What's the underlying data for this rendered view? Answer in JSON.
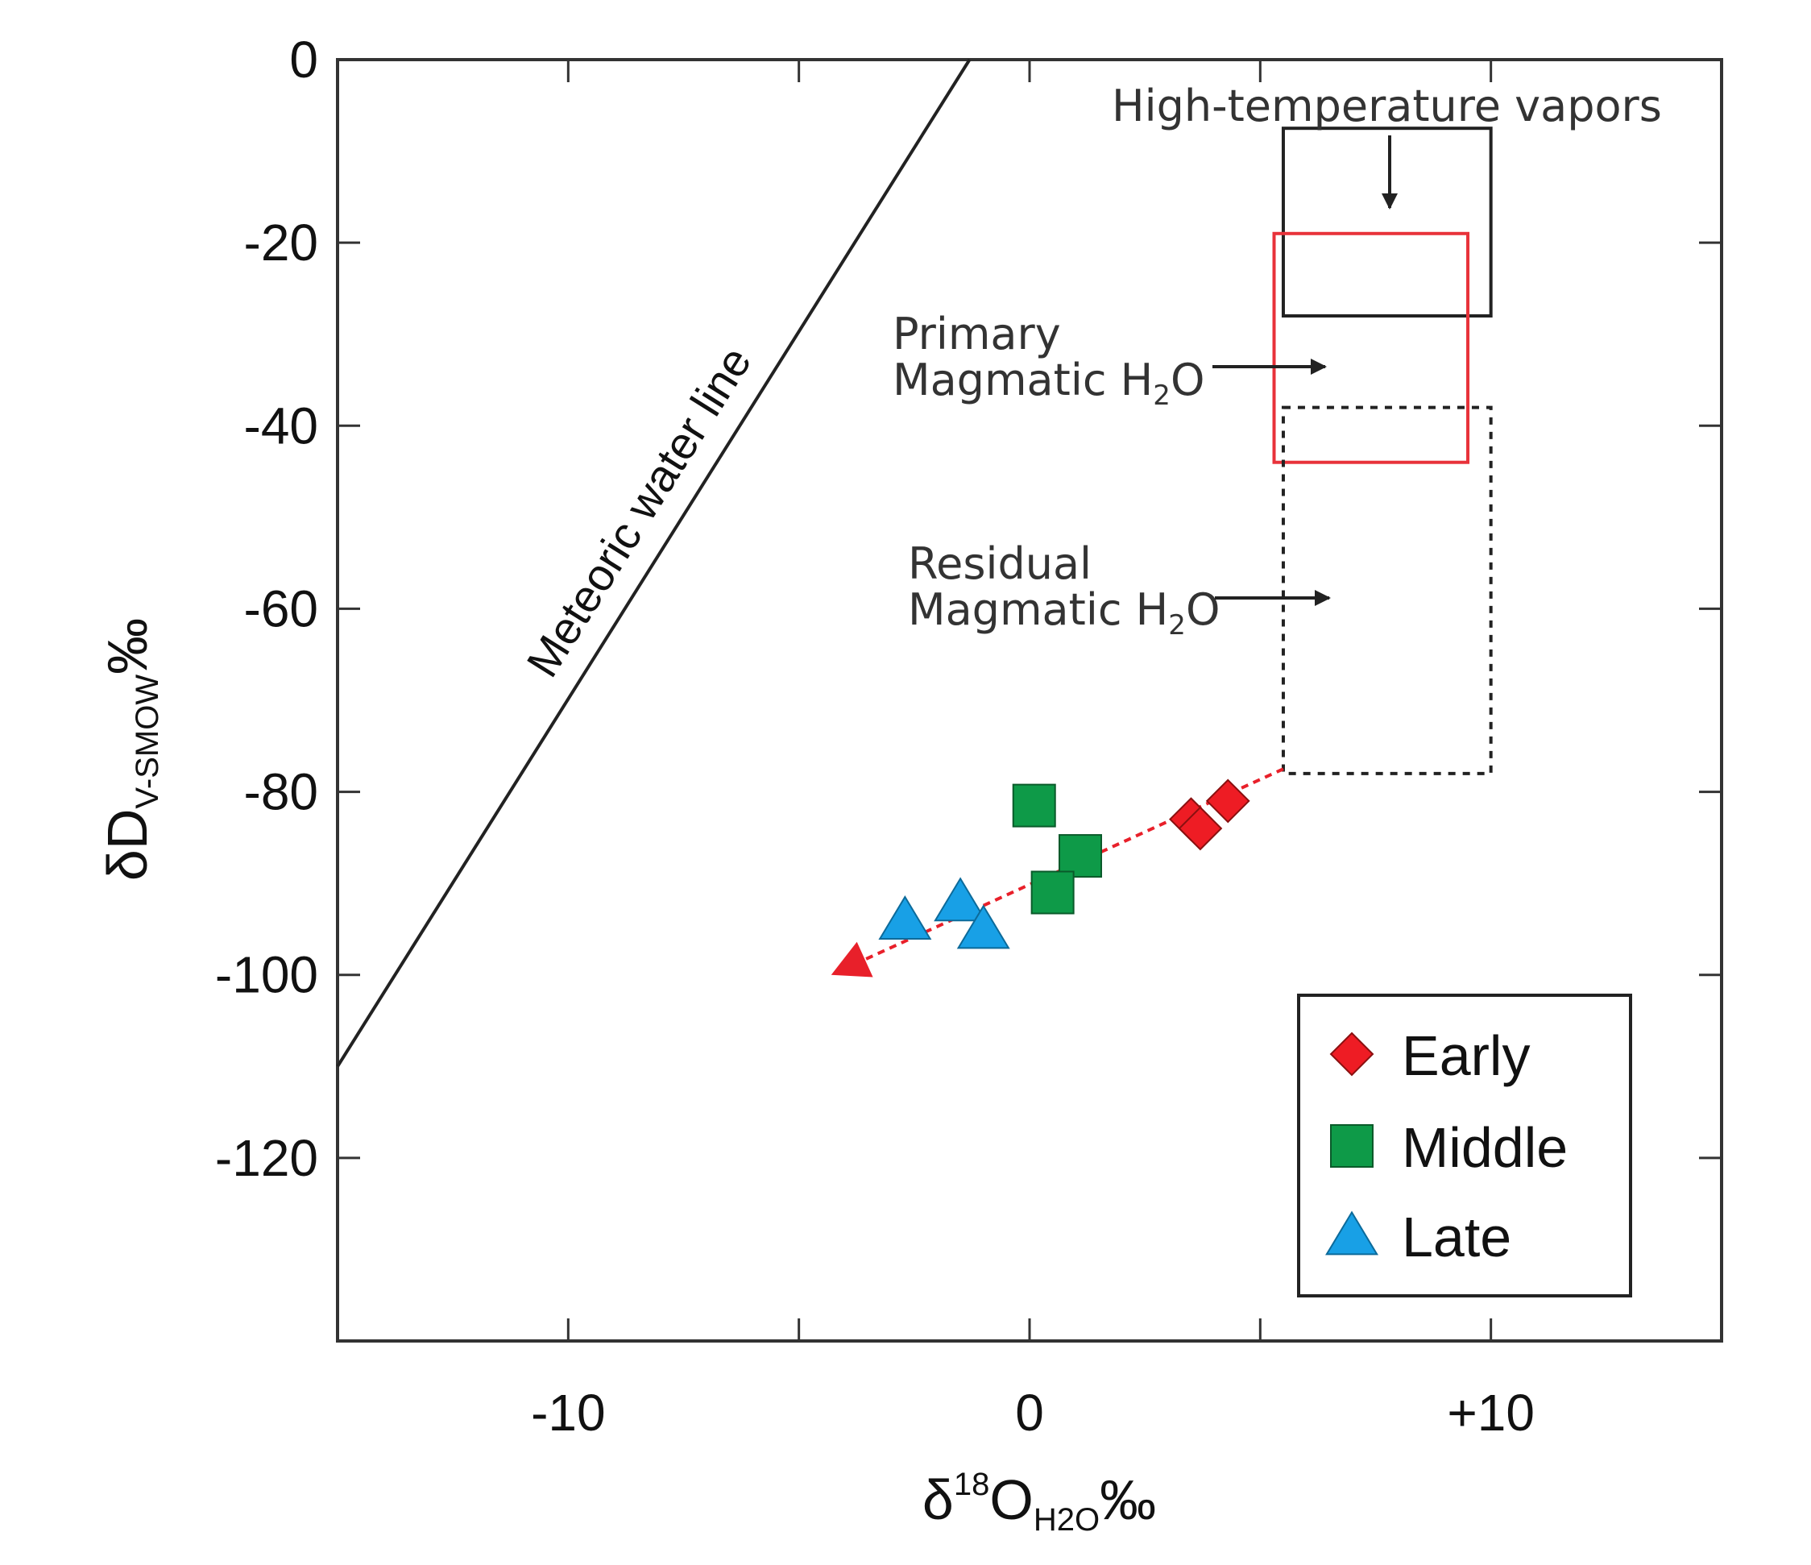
{
  "chart_data": {
    "type": "scatter",
    "title": "",
    "xlabel": {
      "symbol": "δ",
      "sup": "18",
      "main": "O",
      "sub": "H2O",
      "unit": "‰"
    },
    "ylabel": {
      "symbol": "δ",
      "main": "D",
      "sub": "V-SMOW",
      "unit": "‰"
    },
    "xlim": [
      -15,
      15
    ],
    "ylim": [
      -140,
      0
    ],
    "x_ticks": [
      {
        "value": -10,
        "label": "-10"
      },
      {
        "value": 0,
        "label": "0"
      },
      {
        "value": 10,
        "label": "+10"
      }
    ],
    "x_minor_ticks": [
      -5,
      5
    ],
    "y_ticks": [
      {
        "value": 0,
        "label": "0"
      },
      {
        "value": -20,
        "label": "-20"
      },
      {
        "value": -40,
        "label": "-40"
      },
      {
        "value": -60,
        "label": "-60"
      },
      {
        "value": -80,
        "label": "-80"
      },
      {
        "value": -100,
        "label": "-100"
      },
      {
        "value": -120,
        "label": "-120"
      }
    ],
    "grid": false,
    "legend_position": "bottom-right",
    "series": [
      {
        "name": "Early",
        "marker": "diamond",
        "color": "#ee1c24",
        "points": [
          {
            "x": 3.5,
            "y": -83
          },
          {
            "x": 3.7,
            "y": -84
          },
          {
            "x": 4.3,
            "y": -81
          }
        ]
      },
      {
        "name": "Middle",
        "marker": "square",
        "color": "#0e9a48",
        "points": [
          {
            "x": 0.1,
            "y": -81.5
          },
          {
            "x": 1.1,
            "y": -87
          },
          {
            "x": 0.5,
            "y": -91
          }
        ]
      },
      {
        "name": "Late",
        "marker": "triangle",
        "color": "#18a0e6",
        "points": [
          {
            "x": -2.7,
            "y": -94
          },
          {
            "x": -1.5,
            "y": -92
          },
          {
            "x": -1.0,
            "y": -95
          }
        ]
      }
    ],
    "meteoric_water_line": {
      "label": "Meteoric water line",
      "from": {
        "x": -15,
        "y": -110
      },
      "to": {
        "x": -1.3,
        "y": 0
      }
    },
    "trend_arrow": {
      "color": "#e8202a",
      "from": {
        "x": 5.5,
        "y": -77.5
      },
      "to": {
        "x": -4.3,
        "y": -100
      }
    },
    "regions": [
      {
        "name": "high-temperature-vapors",
        "x": [
          5.5,
          10
        ],
        "y": [
          -28,
          -7.5
        ],
        "stroke": "#222222",
        "dash": false
      },
      {
        "name": "primary-magmatic-h2o",
        "x": [
          5.3,
          9.5
        ],
        "y": [
          -44,
          -19
        ],
        "stroke": "#e8323a",
        "dash": false
      },
      {
        "name": "residual-magmatic-h2o",
        "x": [
          5.5,
          10
        ],
        "y": [
          -78,
          -38
        ],
        "stroke": "#222222",
        "dash": true
      }
    ],
    "annotations": [
      {
        "id": "vapors",
        "lines": [
          "High-temperature vapors"
        ]
      },
      {
        "id": "primary",
        "lines": [
          "Primary",
          "Magmatic H2O"
        ]
      },
      {
        "id": "residual",
        "lines": [
          "Residual",
          "Magmatic H2O"
        ]
      }
    ]
  }
}
